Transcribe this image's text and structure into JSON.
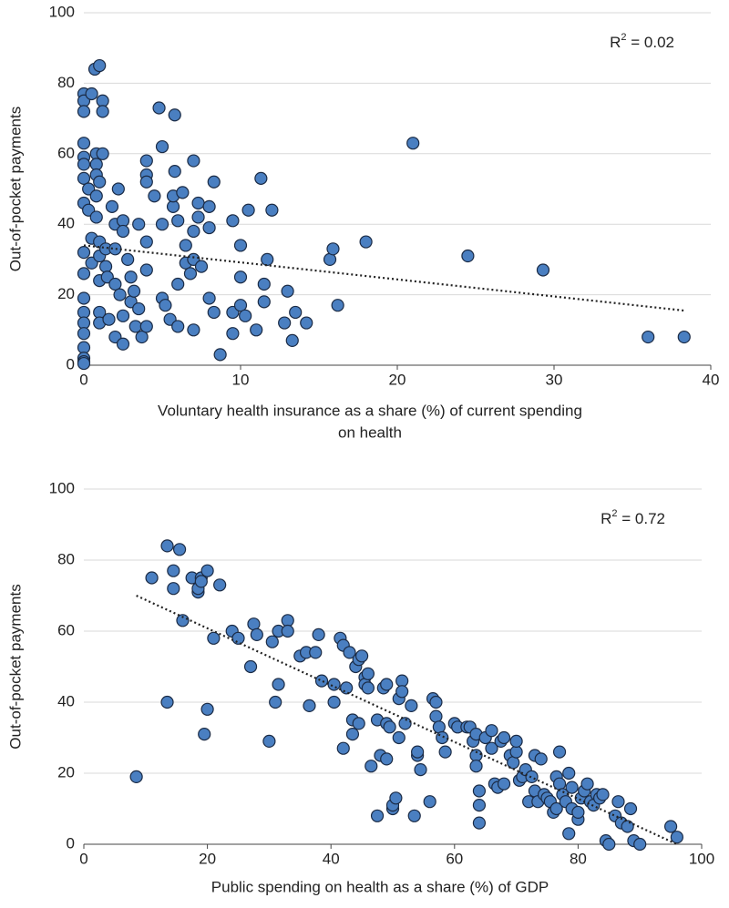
{
  "chart_data": [
    {
      "type": "scatter",
      "ylabel": "Out-of-pocket payments",
      "xlabel": [
        "Voluntary health insurance as a share (%) of current spending",
        "on health"
      ],
      "annotation": {
        "base": "R",
        "sup": "2",
        "text": " = 0.02"
      },
      "color": "#4a7fc1",
      "grid": true,
      "xlim": [
        0,
        40
      ],
      "xticks": [
        0,
        10,
        20,
        30,
        40
      ],
      "ylim": [
        0,
        100
      ],
      "yticks": [
        0,
        20,
        40,
        60,
        80,
        100
      ],
      "x": [
        0,
        0,
        0,
        0,
        0,
        0,
        0,
        0,
        0,
        0,
        0,
        0,
        0,
        0,
        0,
        0,
        0,
        0,
        0.3,
        0.3,
        0.5,
        0.5,
        0.5,
        0.7,
        0.8,
        0.8,
        0.8,
        0.8,
        0.8,
        1,
        1,
        1,
        1,
        1,
        1,
        1,
        1.2,
        1.2,
        1.2,
        1.4,
        1.4,
        1.5,
        1.6,
        1.8,
        2,
        2,
        2,
        2,
        2.2,
        2.3,
        2.5,
        2.5,
        2.5,
        2.5,
        2.8,
        3,
        3,
        3.2,
        3.3,
        3.5,
        3.5,
        3.7,
        4,
        4,
        4,
        4,
        4,
        4,
        4.5,
        4.8,
        5,
        5,
        5,
        5.2,
        5.5,
        5.7,
        5.8,
        5.8,
        5.7,
        6,
        6,
        6,
        6.3,
        6.5,
        6.5,
        6.8,
        7,
        7,
        7,
        7,
        7.3,
        7.3,
        7.5,
        8,
        8,
        8,
        8.3,
        8.3,
        8.7,
        9.5,
        9.5,
        9.5,
        10,
        10,
        10,
        10.3,
        10.5,
        11,
        11.3,
        11.5,
        11.5,
        11.7,
        12,
        12.8,
        13,
        13.3,
        13.5,
        14.2,
        15.7,
        15.9,
        16.2,
        18,
        21,
        24.5,
        29.3,
        36,
        38.3
      ],
      "values": [
        77,
        75,
        72,
        63,
        59,
        57,
        53,
        46,
        32,
        26,
        19,
        15,
        12,
        9,
        5,
        2,
        1,
        0.5,
        44,
        50,
        77,
        36,
        29,
        84,
        60,
        57,
        54,
        48,
        42,
        85,
        52,
        35,
        31,
        24,
        15,
        12,
        75,
        72,
        60,
        33,
        28,
        25,
        13,
        45,
        40,
        33,
        23,
        8,
        50,
        20,
        41,
        38,
        14,
        6,
        30,
        18,
        25,
        21,
        11,
        40,
        16,
        8,
        54,
        52,
        58,
        35,
        27,
        11,
        48,
        73,
        62,
        40,
        19,
        17,
        13,
        45,
        71,
        55,
        48,
        41,
        23,
        11,
        49,
        34,
        29,
        26,
        58,
        38,
        30,
        10,
        46,
        42,
        28,
        45,
        39,
        19,
        52,
        15,
        3,
        41,
        15,
        9,
        34,
        25,
        17,
        14,
        44,
        10,
        53,
        18,
        23,
        30,
        44,
        12,
        21,
        7,
        15,
        12,
        30,
        33,
        17,
        35,
        63,
        31,
        27,
        8,
        8
      ],
      "trendline": {
        "x": [
          0,
          38.3
        ],
        "y": [
          34,
          15.5
        ]
      }
    },
    {
      "type": "scatter",
      "ylabel": "Out-of-pocket payments",
      "xlabel": [
        "Public spending on health as a share (%) of GDP"
      ],
      "annotation": {
        "base": "R",
        "sup": "2",
        "text": " = 0.72"
      },
      "color": "#4a7fc1",
      "grid": true,
      "xlim": [
        0,
        100
      ],
      "xticks": [
        0,
        20,
        40,
        60,
        80,
        100
      ],
      "ylim": [
        0,
        100
      ],
      "yticks": [
        0,
        20,
        40,
        60,
        80,
        100
      ],
      "x": [
        8.5,
        11,
        13.5,
        13.5,
        14.5,
        14.5,
        15.5,
        16,
        17.5,
        18.5,
        18.5,
        19,
        19,
        19.5,
        20,
        20,
        21,
        22,
        24,
        25,
        27,
        27.5,
        28,
        30,
        30.5,
        31,
        31.5,
        31.5,
        33,
        33,
        35,
        36,
        36.5,
        37.5,
        38,
        38.5,
        40.5,
        40.5,
        41.5,
        42,
        42,
        42.5,
        43,
        43.5,
        43.5,
        44,
        44.5,
        44.5,
        45,
        45.5,
        45.5,
        46,
        46,
        46.5,
        47.5,
        47.5,
        48,
        48.5,
        49,
        49,
        49,
        49.5,
        50,
        50,
        50.5,
        51,
        51,
        51.5,
        51.5,
        52,
        53,
        53.5,
        54,
        54,
        54.5,
        56,
        56.5,
        57,
        57,
        57.5,
        58,
        58.5,
        60,
        60.5,
        62,
        62.5,
        63,
        63.5,
        63.5,
        63.5,
        64,
        64,
        64,
        65,
        66,
        66,
        66.5,
        67,
        67.5,
        68,
        68,
        69,
        69.5,
        70,
        70,
        70.5,
        71,
        71.5,
        72,
        72.5,
        73,
        73,
        73.5,
        74,
        74.5,
        75,
        75.5,
        76,
        76.5,
        76.5,
        77,
        77,
        77.5,
        78,
        78.5,
        78.5,
        79,
        79,
        80,
        80,
        80.5,
        81,
        81.5,
        82,
        82.5,
        83,
        83.5,
        84,
        84.5,
        85,
        86,
        86.5,
        87,
        88,
        88.5,
        89,
        90,
        95,
        96
      ],
      "values": [
        19,
        75,
        40,
        84,
        77,
        72,
        83,
        63,
        75,
        71,
        72,
        75,
        74,
        31,
        38,
        77,
        58,
        73,
        60,
        58,
        50,
        62,
        59,
        29,
        57,
        40,
        45,
        60,
        63,
        60,
        53,
        54,
        39,
        54,
        59,
        46,
        45,
        40,
        58,
        56,
        27,
        44,
        54,
        35,
        31,
        50,
        52,
        34,
        53,
        47,
        45,
        44,
        48,
        22,
        8,
        35,
        25,
        44,
        45,
        34,
        24,
        33,
        10,
        11,
        13,
        41,
        30,
        46,
        43,
        34,
        39,
        8,
        25,
        26,
        21,
        12,
        41,
        40,
        36,
        33,
        30,
        26,
        34,
        33,
        33,
        33,
        29,
        25,
        22,
        31,
        15,
        11,
        6,
        30,
        32,
        27,
        17,
        16,
        29,
        30,
        17,
        25,
        23,
        26,
        29,
        18,
        19,
        21,
        12,
        19,
        15,
        25,
        12,
        24,
        14,
        13,
        12,
        9,
        10,
        19,
        17,
        26,
        14,
        12,
        20,
        3,
        16,
        10,
        7,
        9,
        13,
        15,
        17,
        12,
        11,
        14,
        13,
        14,
        1,
        0,
        8,
        12,
        6,
        5,
        10,
        1,
        0,
        5,
        2
      ],
      "trendline": {
        "x": [
          8.5,
          96
        ],
        "y": [
          70,
          0
        ]
      }
    }
  ]
}
